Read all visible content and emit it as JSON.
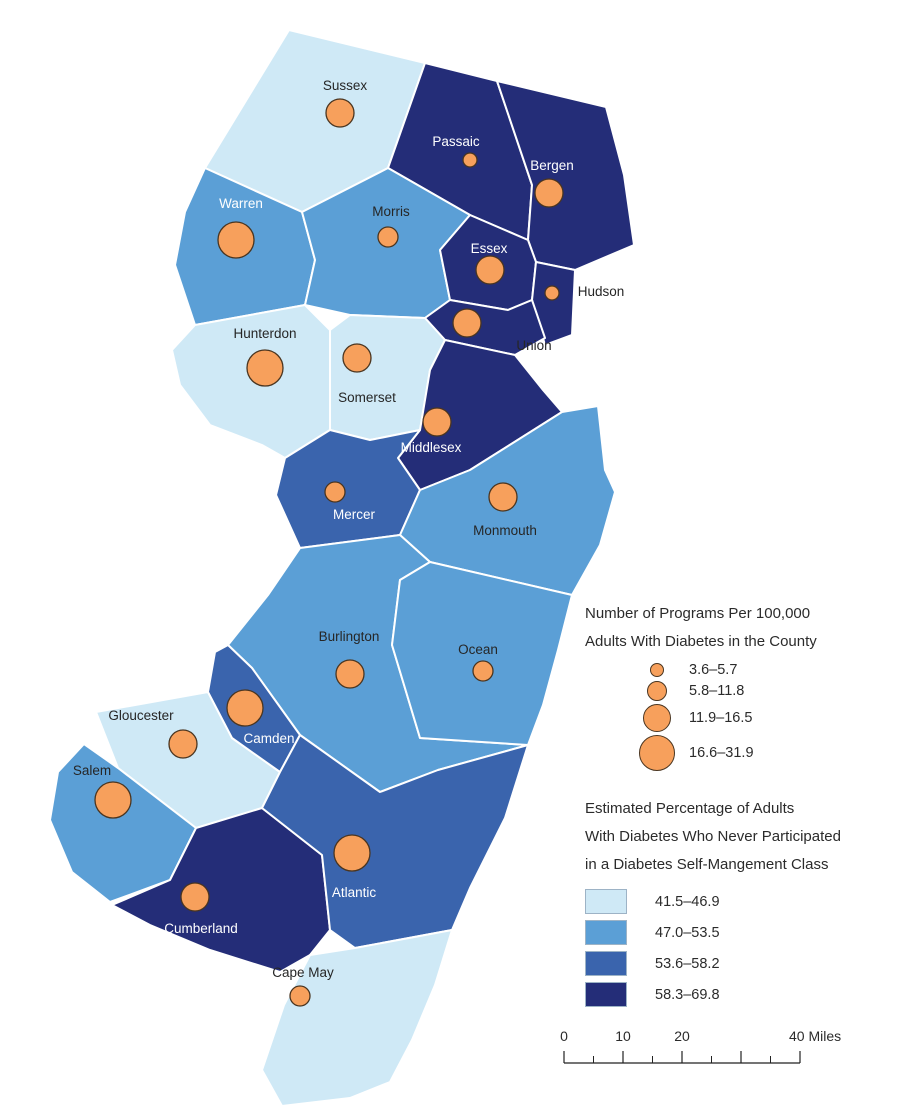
{
  "map": {
    "border_color": "#ffffff",
    "circle_fill": "#f7a05c",
    "circle_stroke": "#4a3520",
    "label_dark": "#262626",
    "label_light": "#ffffff",
    "counties": [
      {
        "id": "sussex",
        "name": "Sussex",
        "percent": "41.5–46.9",
        "programs": "11.9–16.5",
        "label": "dark"
      },
      {
        "id": "passaic",
        "name": "Passaic",
        "percent": "58.3–69.8",
        "programs": "3.6–5.7",
        "label": "light"
      },
      {
        "id": "bergen",
        "name": "Bergen",
        "percent": "58.3–69.8",
        "programs": "11.9–16.5",
        "label": "light"
      },
      {
        "id": "warren",
        "name": "Warren",
        "percent": "47.0–53.5",
        "programs": "16.6–31.9",
        "label": "light"
      },
      {
        "id": "morris",
        "name": "Morris",
        "percent": "47.0–53.5",
        "programs": "5.8–11.8",
        "label": "dark"
      },
      {
        "id": "essex",
        "name": "Essex",
        "percent": "58.3–69.8",
        "programs": "11.9–16.5",
        "label": "light"
      },
      {
        "id": "hudson",
        "name": "Hudson",
        "percent": "58.3–69.8",
        "programs": "3.6–5.7",
        "label": "dark"
      },
      {
        "id": "union",
        "name": "Union",
        "percent": "58.3–69.8",
        "programs": "11.9–16.5",
        "label": "dark"
      },
      {
        "id": "hunterdon",
        "name": "Hunterdon",
        "percent": "41.5–46.9",
        "programs": "16.6–31.9",
        "label": "dark"
      },
      {
        "id": "somerset",
        "name": "Somerset",
        "percent": "41.5–46.9",
        "programs": "11.9–16.5",
        "label": "dark"
      },
      {
        "id": "middlesex",
        "name": "Middlesex",
        "percent": "58.3–69.8",
        "programs": "11.9–16.5",
        "label": "light"
      },
      {
        "id": "mercer",
        "name": "Mercer",
        "percent": "53.6–58.2",
        "programs": "5.8–11.8",
        "label": "light"
      },
      {
        "id": "monmouth",
        "name": "Monmouth",
        "percent": "47.0–53.5",
        "programs": "11.9–16.5",
        "label": "dark"
      },
      {
        "id": "burlington",
        "name": "Burlington",
        "percent": "47.0–53.5",
        "programs": "11.9–16.5",
        "label": "dark"
      },
      {
        "id": "ocean",
        "name": "Ocean",
        "percent": "47.0–53.5",
        "programs": "5.8–11.8",
        "label": "dark"
      },
      {
        "id": "gloucester",
        "name": "Gloucester",
        "percent": "41.5–46.9",
        "programs": "11.9–16.5",
        "label": "dark"
      },
      {
        "id": "camden",
        "name": "Camden",
        "percent": "53.6–58.2",
        "programs": "16.6–31.9",
        "label": "light"
      },
      {
        "id": "salem",
        "name": "Salem",
        "percent": "47.0–53.5",
        "programs": "16.6–31.9",
        "label": "dark"
      },
      {
        "id": "cumberland",
        "name": "Cumberland",
        "percent": "58.3–69.8",
        "programs": "11.9–16.5",
        "label": "light"
      },
      {
        "id": "atlantic",
        "name": "Atlantic",
        "percent": "53.6–58.2",
        "programs": "16.6–31.9",
        "label": "light"
      },
      {
        "id": "capemay",
        "name": "Cape May",
        "percent": "41.5–46.9",
        "programs": "5.8–11.8",
        "label": "dark"
      }
    ]
  },
  "legend_programs": {
    "title_lines": [
      "Number of Programs Per 100,000",
      "Adults With Diabetes in the County"
    ],
    "classes": [
      {
        "label": "3.6–5.7",
        "r": 7
      },
      {
        "label": "5.8–11.8",
        "r": 10
      },
      {
        "label": "11.9–16.5",
        "r": 14
      },
      {
        "label": "16.6–31.9",
        "r": 18
      }
    ]
  },
  "legend_percentage": {
    "title_lines": [
      "Estimated Percentage of Adults",
      "With Diabetes Who Never Participated",
      "in a Diabetes Self-Mangement Class"
    ],
    "classes": [
      {
        "label": "41.5–46.9",
        "color": "#cfe9f6"
      },
      {
        "label": "47.0–53.5",
        "color": "#5b9fd6"
      },
      {
        "label": "53.6–58.2",
        "color": "#3a64ad"
      },
      {
        "label": "58.3–69.8",
        "color": "#242d78"
      }
    ]
  },
  "scalebar": {
    "labels": [
      "0",
      "10",
      "20"
    ],
    "end_label": "40 Miles"
  }
}
